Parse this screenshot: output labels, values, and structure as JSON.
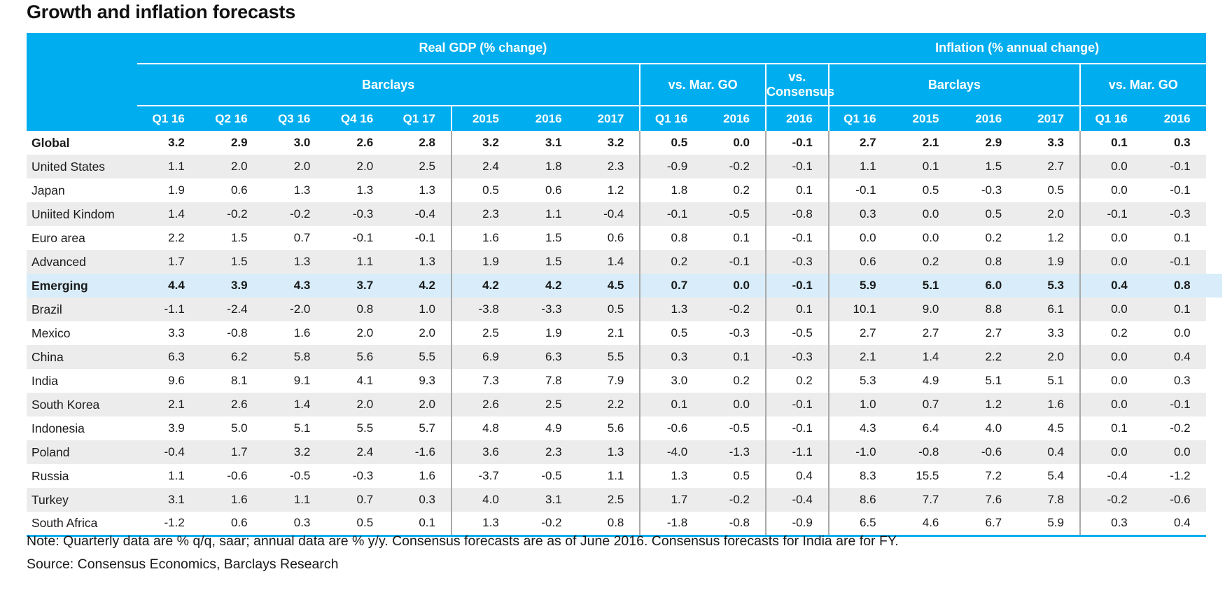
{
  "title": "Growth and inflation forecasts",
  "table": {
    "section_gdp": "Real GDP (% change)",
    "section_inflation": "Inflation (% annual change)",
    "group_barclays": "Barclays",
    "group_vs_mar_go": "vs. Mar. GO",
    "group_vs_consensus": "vs. Consensus",
    "columns": [
      "Q1 16",
      "Q2 16",
      "Q3 16",
      "Q4 16",
      "Q1 17",
      "2015",
      "2016",
      "2017",
      "Q1 16",
      "2016",
      "2016",
      "Q1 16",
      "2015",
      "2016",
      "2017",
      "Q1 16",
      "2016"
    ],
    "rows": [
      {
        "label": "Global",
        "bold": true,
        "highlight": false,
        "values": [
          "3.2",
          "2.9",
          "3.0",
          "2.6",
          "2.8",
          "3.2",
          "3.1",
          "3.2",
          "0.5",
          "0.0",
          "-0.1",
          "2.7",
          "2.1",
          "2.9",
          "3.3",
          "0.1",
          "0.3"
        ]
      },
      {
        "label": "United States",
        "bold": false,
        "highlight": false,
        "values": [
          "1.1",
          "2.0",
          "2.0",
          "2.0",
          "2.5",
          "2.4",
          "1.8",
          "2.3",
          "-0.9",
          "-0.2",
          "-0.1",
          "1.1",
          "0.1",
          "1.5",
          "2.7",
          "0.0",
          "-0.1"
        ]
      },
      {
        "label": "Japan",
        "bold": false,
        "highlight": false,
        "values": [
          "1.9",
          "0.6",
          "1.3",
          "1.3",
          "1.3",
          "0.5",
          "0.6",
          "1.2",
          "1.8",
          "0.2",
          "0.1",
          "-0.1",
          "0.5",
          "-0.3",
          "0.5",
          "0.0",
          "-0.1"
        ]
      },
      {
        "label": "Uniited Kindom",
        "bold": false,
        "highlight": false,
        "values": [
          "1.4",
          "-0.2",
          "-0.2",
          "-0.3",
          "-0.4",
          "2.3",
          "1.1",
          "-0.4",
          "-0.1",
          "-0.5",
          "-0.8",
          "0.3",
          "0.0",
          "0.5",
          "2.0",
          "-0.1",
          "-0.3"
        ]
      },
      {
        "label": "Euro area",
        "bold": false,
        "highlight": false,
        "values": [
          "2.2",
          "1.5",
          "0.7",
          "-0.1",
          "-0.1",
          "1.6",
          "1.5",
          "0.6",
          "0.8",
          "0.1",
          "-0.1",
          "0.0",
          "0.0",
          "0.2",
          "1.2",
          "0.0",
          "0.1"
        ]
      },
      {
        "label": "Advanced",
        "bold": false,
        "highlight": false,
        "values": [
          "1.7",
          "1.5",
          "1.3",
          "1.1",
          "1.3",
          "1.9",
          "1.5",
          "1.4",
          "0.2",
          "-0.1",
          "-0.3",
          "0.6",
          "0.2",
          "0.8",
          "1.9",
          "0.0",
          "-0.1"
        ]
      },
      {
        "label": "Emerging",
        "bold": true,
        "highlight": true,
        "values": [
          "4.4",
          "3.9",
          "4.3",
          "3.7",
          "4.2",
          "4.2",
          "4.2",
          "4.5",
          "0.7",
          "0.0",
          "-0.1",
          "5.9",
          "5.1",
          "6.0",
          "5.3",
          "0.4",
          "0.8"
        ]
      },
      {
        "label": "Brazil",
        "bold": false,
        "highlight": false,
        "values": [
          "-1.1",
          "-2.4",
          "-2.0",
          "0.8",
          "1.0",
          "-3.8",
          "-3.3",
          "0.5",
          "1.3",
          "-0.2",
          "0.1",
          "10.1",
          "9.0",
          "8.8",
          "6.1",
          "0.0",
          "0.1"
        ]
      },
      {
        "label": "Mexico",
        "bold": false,
        "highlight": false,
        "values": [
          "3.3",
          "-0.8",
          "1.6",
          "2.0",
          "2.0",
          "2.5",
          "1.9",
          "2.1",
          "0.5",
          "-0.3",
          "-0.5",
          "2.7",
          "2.7",
          "2.7",
          "3.3",
          "0.2",
          "0.0"
        ]
      },
      {
        "label": "China",
        "bold": false,
        "highlight": false,
        "values": [
          "6.3",
          "6.2",
          "5.8",
          "5.6",
          "5.5",
          "6.9",
          "6.3",
          "5.5",
          "0.3",
          "0.1",
          "-0.3",
          "2.1",
          "1.4",
          "2.2",
          "2.0",
          "0.0",
          "0.4"
        ]
      },
      {
        "label": "India",
        "bold": false,
        "highlight": false,
        "values": [
          "9.6",
          "8.1",
          "9.1",
          "4.1",
          "9.3",
          "7.3",
          "7.8",
          "7.9",
          "3.0",
          "0.2",
          "0.2",
          "5.3",
          "4.9",
          "5.1",
          "5.1",
          "0.0",
          "0.3"
        ]
      },
      {
        "label": "South Korea",
        "bold": false,
        "highlight": false,
        "values": [
          "2.1",
          "2.6",
          "1.4",
          "2.0",
          "2.0",
          "2.6",
          "2.5",
          "2.2",
          "0.1",
          "0.0",
          "-0.1",
          "1.0",
          "0.7",
          "1.2",
          "1.6",
          "0.0",
          "-0.1"
        ]
      },
      {
        "label": "Indonesia",
        "bold": false,
        "highlight": false,
        "values": [
          "3.9",
          "5.0",
          "5.1",
          "5.5",
          "5.7",
          "4.8",
          "4.9",
          "5.6",
          "-0.6",
          "-0.5",
          "-0.1",
          "4.3",
          "6.4",
          "4.0",
          "4.5",
          "0.1",
          "-0.2"
        ]
      },
      {
        "label": "Poland",
        "bold": false,
        "highlight": false,
        "values": [
          "-0.4",
          "1.7",
          "3.2",
          "2.4",
          "-1.6",
          "3.6",
          "2.3",
          "1.3",
          "-4.0",
          "-1.3",
          "-1.1",
          "-1.0",
          "-0.8",
          "-0.6",
          "0.4",
          "0.0",
          "0.0"
        ]
      },
      {
        "label": "Russia",
        "bold": false,
        "highlight": false,
        "values": [
          "1.1",
          "-0.6",
          "-0.5",
          "-0.3",
          "1.6",
          "-3.7",
          "-0.5",
          "1.1",
          "1.3",
          "0.5",
          "0.4",
          "8.3",
          "15.5",
          "7.2",
          "5.4",
          "-0.4",
          "-1.2"
        ]
      },
      {
        "label": "Turkey",
        "bold": false,
        "highlight": false,
        "values": [
          "3.1",
          "1.6",
          "1.1",
          "0.7",
          "0.3",
          "4.0",
          "3.1",
          "2.5",
          "1.7",
          "-0.2",
          "-0.4",
          "8.6",
          "7.7",
          "7.6",
          "7.8",
          "-0.2",
          "-0.6"
        ]
      },
      {
        "label": "South Africa",
        "bold": false,
        "highlight": false,
        "values": [
          "-1.2",
          "0.6",
          "0.3",
          "0.5",
          "0.1",
          "1.3",
          "-0.2",
          "0.8",
          "-1.8",
          "-0.8",
          "-0.9",
          "6.5",
          "4.6",
          "6.7",
          "5.9",
          "0.3",
          "0.4"
        ]
      }
    ]
  },
  "note": "Note: Quarterly data are % q/q, saar; annual data are % y/y. Consensus forecasts are as of June 2016. Consensus forecasts for India are for FY.",
  "source": "Source: Consensus Economics, Barclays Research",
  "colors": {
    "header_cyan": "#00aeef",
    "highlight_row": "#d8edf9",
    "alt_row": "#ececec",
    "separator_gray": "#a9a9a9"
  }
}
